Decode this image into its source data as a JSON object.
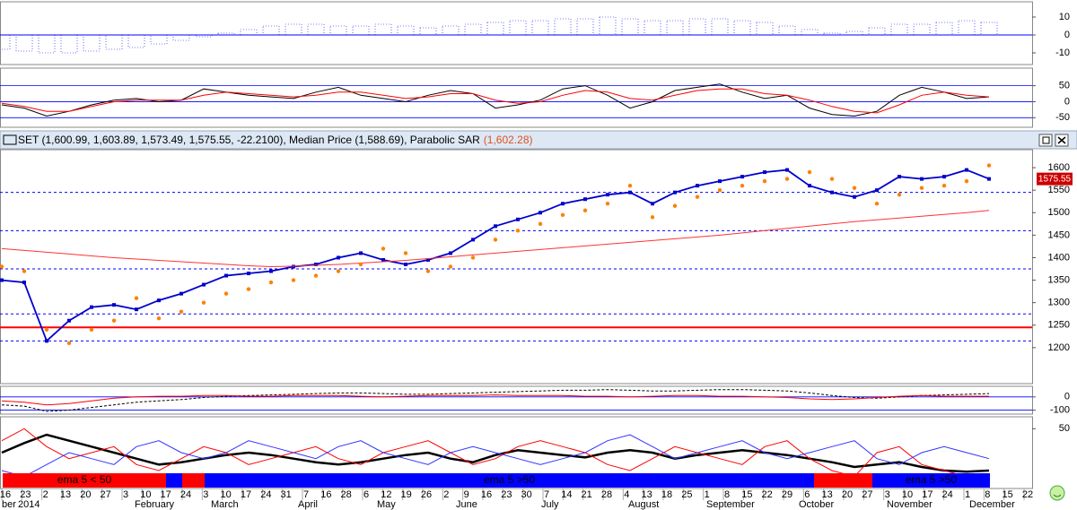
{
  "header": {
    "title": "SET (1,600.99, 1,603.89, 1,573.49, 1,575.55, -22.2100), Median Price (1,588.69), Parabolic SAR",
    "sar": "(1,602.28)"
  },
  "chart_data": [
    {
      "type": "bar",
      "color": "#0000ff",
      "ylim": [
        -16.5,
        18.5
      ],
      "yticks": [
        10,
        0,
        -10
      ],
      "grid": false,
      "values": [
        -8,
        -9,
        -10,
        -10,
        -9,
        -8,
        -7,
        -5,
        -3,
        -1,
        1,
        3,
        5,
        6,
        6,
        5,
        5,
        6,
        5,
        4,
        5,
        6,
        7,
        8,
        8,
        9,
        9,
        10,
        9,
        8,
        8,
        9,
        9,
        8,
        7,
        5,
        3,
        1,
        2,
        4,
        6,
        6,
        7,
        8,
        7
      ]
    },
    {
      "type": "line",
      "ylim": [
        -80,
        105
      ],
      "yticks": [
        50,
        0,
        -50
      ],
      "grid": true,
      "series": [
        {
          "color": "#000000",
          "values": [
            -10,
            -20,
            -45,
            -30,
            -10,
            5,
            10,
            0,
            5,
            40,
            30,
            20,
            15,
            10,
            30,
            45,
            20,
            10,
            0,
            20,
            35,
            25,
            -20,
            -10,
            5,
            40,
            50,
            20,
            -20,
            0,
            35,
            45,
            55,
            30,
            10,
            20,
            -20,
            -40,
            -45,
            -30,
            20,
            45,
            30,
            10,
            15
          ]
        },
        {
          "color": "#ff0000",
          "values": [
            -5,
            -15,
            -30,
            -30,
            -15,
            0,
            5,
            5,
            5,
            20,
            30,
            25,
            20,
            15,
            20,
            30,
            30,
            20,
            10,
            15,
            25,
            25,
            5,
            -5,
            0,
            20,
            35,
            30,
            10,
            5,
            20,
            35,
            40,
            40,
            25,
            20,
            5,
            -15,
            -30,
            -35,
            -10,
            20,
            30,
            20,
            15
          ]
        }
      ]
    },
    {
      "type": "price",
      "ylim": [
        1120,
        1640
      ],
      "yticks": [
        1600,
        1550,
        1500,
        1450,
        1400,
        1350,
        1300,
        1250,
        1200
      ],
      "grid": false,
      "levels": [
        1545,
        1460,
        1375,
        1275,
        1215
      ],
      "level_color": "#0000ff",
      "support": 1245,
      "support_color": "#ff0000",
      "last_label": "1575.55",
      "series": [
        {
          "color": "#0000cc",
          "values": [
            1350,
            1345,
            1215,
            1260,
            1290,
            1295,
            1285,
            1305,
            1320,
            1340,
            1360,
            1365,
            1370,
            1380,
            1385,
            1400,
            1410,
            1395,
            1385,
            1395,
            1410,
            1440,
            1470,
            1485,
            1500,
            1520,
            1530,
            1540,
            1545,
            1520,
            1545,
            1560,
            1570,
            1580,
            1590,
            1595,
            1560,
            1545,
            1535,
            1550,
            1580,
            1575,
            1580,
            1595,
            1575
          ]
        },
        {
          "color": "#ff3333",
          "values": [
            1420,
            1416,
            1412,
            1408,
            1404,
            1400,
            1397,
            1394,
            1391,
            1388,
            1385,
            1382,
            1380,
            1381,
            1383,
            1385,
            1388,
            1391,
            1394,
            1398,
            1402,
            1406,
            1410,
            1414,
            1418,
            1422,
            1426,
            1430,
            1434,
            1438,
            1442,
            1446,
            1450,
            1455,
            1460,
            1465,
            1470,
            1475,
            1480,
            1484,
            1488,
            1492,
            1496,
            1500,
            1505
          ]
        },
        {
          "color": "#ff8000",
          "dots": true,
          "values": [
            1380,
            1370,
            1240,
            1210,
            1240,
            1260,
            1310,
            1265,
            1280,
            1300,
            1320,
            1330,
            1345,
            1350,
            1360,
            1370,
            1385,
            1420,
            1410,
            1370,
            1380,
            1400,
            1440,
            1460,
            1475,
            1495,
            1505,
            1520,
            1560,
            1490,
            1515,
            1535,
            1550,
            1560,
            1570,
            1575,
            1590,
            1575,
            1555,
            1520,
            1540,
            1555,
            1560,
            1570,
            1605
          ]
        }
      ]
    },
    {
      "type": "line",
      "ylim": [
        -130,
        80
      ],
      "yticks": [
        0,
        -100
      ],
      "grid": true,
      "series": [
        {
          "color": "#000000",
          "dashed": true,
          "values": [
            -60,
            -70,
            -110,
            -100,
            -80,
            -60,
            -40,
            -30,
            -20,
            -5,
            5,
            10,
            15,
            20,
            25,
            30,
            30,
            25,
            20,
            20,
            25,
            30,
            35,
            40,
            45,
            50,
            50,
            55,
            50,
            45,
            45,
            50,
            55,
            55,
            50,
            45,
            30,
            10,
            -5,
            -10,
            0,
            10,
            15,
            20,
            25
          ]
        },
        {
          "color": "#ff0000",
          "values": [
            -30,
            -40,
            -60,
            -50,
            -30,
            -10,
            0,
            5,
            5,
            10,
            10,
            5,
            5,
            10,
            10,
            10,
            5,
            0,
            5,
            10,
            10,
            10,
            15,
            10,
            10,
            10,
            5,
            5,
            0,
            5,
            10,
            10,
            5,
            5,
            0,
            -5,
            -15,
            -20,
            -15,
            -5,
            5,
            10,
            5,
            5,
            5
          ]
        }
      ]
    },
    {
      "type": "line",
      "ylim": [
        0,
        60
      ],
      "yticks": [
        50
      ],
      "grid": false,
      "series": [
        {
          "color": "#000000",
          "width": 2.5,
          "values": [
            30,
            38,
            45,
            40,
            35,
            30,
            25,
            20,
            22,
            25,
            28,
            30,
            28,
            25,
            22,
            20,
            22,
            25,
            28,
            30,
            25,
            22,
            28,
            32,
            30,
            28,
            26,
            30,
            32,
            30,
            25,
            28,
            30,
            32,
            30,
            28,
            25,
            22,
            18,
            20,
            22,
            18,
            15,
            14,
            15
          ]
        },
        {
          "color": "#ff0000",
          "values": [
            40,
            50,
            35,
            25,
            30,
            35,
            20,
            15,
            25,
            35,
            30,
            20,
            25,
            30,
            35,
            25,
            20,
            30,
            35,
            40,
            30,
            20,
            25,
            35,
            40,
            35,
            30,
            20,
            15,
            25,
            35,
            30,
            25,
            20,
            35,
            40,
            25,
            15,
            10,
            30,
            35,
            20,
            15,
            10,
            12
          ]
        },
        {
          "color": "#3333ff",
          "values": [
            15,
            10,
            20,
            30,
            25,
            20,
            35,
            40,
            30,
            25,
            30,
            40,
            35,
            30,
            25,
            35,
            40,
            30,
            25,
            20,
            30,
            35,
            30,
            25,
            20,
            25,
            30,
            40,
            45,
            35,
            25,
            30,
            35,
            40,
            30,
            25,
            30,
            35,
            40,
            25,
            20,
            30,
            35,
            30,
            25
          ]
        }
      ]
    }
  ],
  "signal_band": [
    {
      "label": "ema 5 < 50",
      "color": "#ff0000"
    },
    {
      "color": "#0000ff"
    },
    {
      "color": "#ff0000"
    },
    {
      "label": "ema 5 >50",
      "color": "#0000ff"
    },
    {
      "color": "#ff0000"
    },
    {
      "label": "ema 5 >50",
      "color": "#0000ff"
    }
  ],
  "date_axis": {
    "days": [
      16,
      23,
      2,
      13,
      20,
      27,
      3,
      10,
      17,
      24,
      3,
      10,
      17,
      24,
      31,
      7,
      16,
      28,
      6,
      12,
      19,
      26,
      2,
      9,
      16,
      23,
      30,
      7,
      14,
      21,
      28,
      4,
      13,
      18,
      25,
      1,
      8,
      15,
      22,
      29,
      6,
      13,
      20,
      27,
      3,
      10,
      17,
      24,
      1,
      8,
      15,
      22
    ],
    "months": [
      "ber",
      "2014",
      "February",
      "March",
      "April",
      "May",
      "June",
      "July",
      "August",
      "September",
      "October",
      "November",
      "December"
    ]
  }
}
